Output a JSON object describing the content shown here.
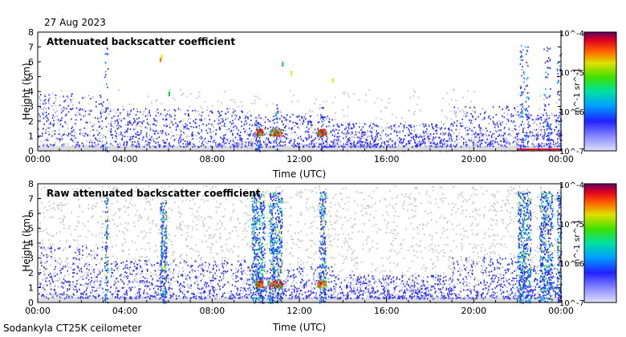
{
  "date": "27 Aug 2023",
  "footer": "Sodankyla CT25K ceilometer",
  "colorbar": {
    "top_label": "10^-4",
    "mid_label": "10^-5",
    "low_label": "10^-6",
    "bottom_label": "10^-7",
    "unit": "m^-1 sr^-1"
  },
  "chart_data": [
    {
      "type": "heatmap",
      "title": "Attenuated backscatter coefficient",
      "xlabel": "Time (UTC)",
      "ylabel": "Height (km)",
      "xticks": [
        "00:00",
        "04:00",
        "08:00",
        "12:00",
        "16:00",
        "20:00",
        "00:00"
      ],
      "yticks": [
        "0",
        "1",
        "2",
        "3",
        "4",
        "5",
        "6",
        "7",
        "8"
      ],
      "xlim_hours": [
        0,
        24
      ],
      "ylim_km": [
        0,
        8
      ],
      "colorscale": "log10 backscatter, 1e-7 to 1e-4 m-1 sr-1"
    },
    {
      "type": "heatmap",
      "title": "Raw attenuated backscatter coefficient",
      "xlabel": "Time (UTC)",
      "ylabel": "Height (km)",
      "xticks": [
        "00:00",
        "04:00",
        "08:00",
        "12:00",
        "16:00",
        "20:00",
        "00:00"
      ],
      "yticks": [
        "0",
        "1",
        "2",
        "3",
        "4",
        "5",
        "6",
        "7",
        "8"
      ],
      "xlim_hours": [
        0,
        24
      ],
      "ylim_km": [
        0,
        8
      ],
      "colorscale": "log10 backscatter, 1e-7 to 1e-4 m-1 sr-1"
    }
  ]
}
